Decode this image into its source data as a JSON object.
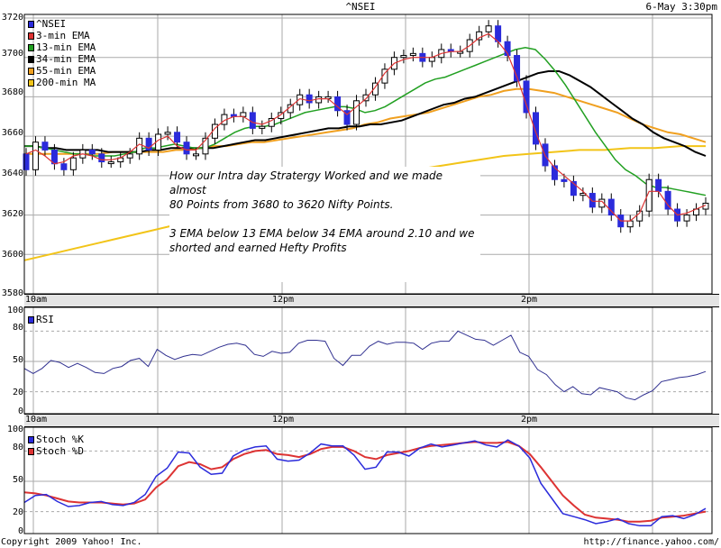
{
  "header": {
    "title": "^NSEI",
    "datetime": "6-May 3:30pm"
  },
  "main_panel": {
    "y_ticks": [
      "3720",
      "3700",
      "3680",
      "3660",
      "3640",
      "3620",
      "3600",
      "3580"
    ],
    "legend": [
      {
        "label": "^NSEI",
        "color": "#2b2bdb"
      },
      {
        "label": "3-min EMA",
        "color": "#dd3333"
      },
      {
        "label": "13-min EMA",
        "color": "#22a022"
      },
      {
        "label": "34-min EMA",
        "color": "#000000"
      },
      {
        "label": "55-min EMA",
        "color": "#f0a020"
      },
      {
        "label": "200-min MA",
        "color": "#f2c418"
      }
    ],
    "annotation": {
      "line1": "How our Intra day Stratergy Worked and we made almost",
      "line2": "80 Points from 3680 to 3620 Nifty Points.",
      "line3": "3 EMA below 13 EMA below 34 EMA around 2.10 and we",
      "line4": "shorted and earned Hefty Profits"
    }
  },
  "x_axis": {
    "labels": [
      "10am",
      "12pm",
      "2pm"
    ]
  },
  "rsi_panel": {
    "legend": "RSI",
    "y_ticks": [
      "100",
      "80",
      "50",
      "20",
      "0"
    ]
  },
  "stoch_panel": {
    "legend_k": "Stoch %K",
    "legend_d": "Stoch %D",
    "y_ticks": [
      "100",
      "80",
      "50",
      "20",
      "0"
    ]
  },
  "footer": {
    "copyright": "Copyright 2009 Yahoo! Inc.",
    "url": "http://finance.yahoo.com/"
  },
  "chart_data": [
    {
      "type": "candlestick",
      "title": "^NSEI",
      "subtitle": "6-May 3:30pm",
      "xlabel": "",
      "ylabel": "",
      "x_tick_labels": [
        "10am",
        "12pm",
        "2pm"
      ],
      "ylim": [
        3580,
        3720
      ],
      "grid": true,
      "legend_position": "top-left",
      "series": [
        {
          "name": "^NSEI",
          "note": "5-min candles (approx closes)",
          "values": [
            3643,
            3657,
            3653,
            3646,
            3643,
            3649,
            3653,
            3651,
            3647,
            3647,
            3649,
            3651,
            3659,
            3653,
            3661,
            3662,
            3657,
            3651,
            3651,
            3659,
            3666,
            3671,
            3670,
            3672,
            3664,
            3665,
            3669,
            3672,
            3676,
            3681,
            3677,
            3680,
            3680,
            3673,
            3666,
            3678,
            3681,
            3687,
            3694,
            3700,
            3701,
            3702,
            3698,
            3700,
            3704,
            3703,
            3703,
            3709,
            3713,
            3716,
            3708,
            3701,
            3688,
            3672,
            3656,
            3645,
            3638,
            3637,
            3630,
            3631,
            3624,
            3628,
            3620,
            3614,
            3617,
            3622,
            3638,
            3632,
            3623,
            3617,
            3620,
            3623,
            3626
          ]
        },
        {
          "name": "3-min EMA",
          "values": [
            3651,
            3653,
            3650,
            3646,
            3647,
            3650,
            3651,
            3650,
            3648,
            3648,
            3649,
            3652,
            3656,
            3654,
            3658,
            3660,
            3655,
            3653,
            3653,
            3658,
            3664,
            3668,
            3670,
            3670,
            3667,
            3666,
            3668,
            3671,
            3675,
            3679,
            3678,
            3679,
            3679,
            3675,
            3671,
            3675,
            3679,
            3685,
            3692,
            3697,
            3699,
            3700,
            3700,
            3700,
            3702,
            3703,
            3703,
            3706,
            3710,
            3712,
            3708,
            3702,
            3690,
            3676,
            3662,
            3650,
            3644,
            3640,
            3636,
            3632,
            3627,
            3627,
            3622,
            3617,
            3617,
            3621,
            3632,
            3632,
            3625,
            3620,
            3621,
            3623,
            3625
          ]
        },
        {
          "name": "13-min EMA",
          "values": [
            3655,
            3655,
            3654,
            3653,
            3652,
            3651,
            3651,
            3650,
            3650,
            3650,
            3651,
            3652,
            3654,
            3654,
            3655,
            3656,
            3655,
            3654,
            3654,
            3656,
            3659,
            3662,
            3664,
            3665,
            3665,
            3666,
            3668,
            3670,
            3672,
            3673,
            3674,
            3675,
            3675,
            3674,
            3672,
            3673,
            3675,
            3678,
            3681,
            3684,
            3687,
            3689,
            3690,
            3692,
            3694,
            3696,
            3698,
            3700,
            3702,
            3704,
            3705,
            3704,
            3699,
            3693,
            3686,
            3678,
            3670,
            3662,
            3655,
            3648,
            3643,
            3640,
            3636,
            3634,
            3634,
            3633,
            3632,
            3631,
            3630
          ]
        },
        {
          "name": "34-min EMA",
          "values": [
            3655,
            3655,
            3654,
            3654,
            3653,
            3653,
            3653,
            3653,
            3652,
            3652,
            3652,
            3652,
            3653,
            3653,
            3654,
            3654,
            3654,
            3654,
            3654,
            3655,
            3656,
            3657,
            3658,
            3658,
            3659,
            3660,
            3661,
            3662,
            3663,
            3664,
            3664,
            3665,
            3665,
            3666,
            3666,
            3667,
            3668,
            3670,
            3672,
            3674,
            3676,
            3677,
            3679,
            3680,
            3682,
            3684,
            3686,
            3688,
            3690,
            3692,
            3693,
            3693,
            3691,
            3688,
            3685,
            3681,
            3677,
            3673,
            3669,
            3666,
            3662,
            3659,
            3657,
            3655,
            3652,
            3650
          ]
        },
        {
          "name": "55-min EMA",
          "values": [
            3651,
            3651,
            3651,
            3651,
            3651,
            3651,
            3651,
            3652,
            3652,
            3652,
            3652,
            3652,
            3653,
            3653,
            3654,
            3655,
            3655,
            3656,
            3657,
            3657,
            3658,
            3659,
            3660,
            3661,
            3662,
            3663,
            3664,
            3666,
            3667,
            3669,
            3670,
            3671,
            3672,
            3674,
            3676,
            3678,
            3680,
            3681,
            3683,
            3684,
            3684,
            3683,
            3682,
            3680,
            3678,
            3676,
            3674,
            3672,
            3669,
            3666,
            3664,
            3662,
            3661,
            3659,
            3657
          ]
        },
        {
          "name": "200-min MA",
          "values": [
            3597,
            3600,
            3603,
            3606,
            3609,
            3612,
            3615,
            3618,
            3621,
            3624,
            3627,
            3630,
            3633,
            3636,
            3639,
            3642,
            3644,
            3646,
            3648,
            3650,
            3651,
            3652,
            3653,
            3653,
            3654,
            3654,
            3655,
            3655
          ]
        }
      ]
    },
    {
      "type": "line",
      "title": "RSI",
      "ylim": [
        0,
        100
      ],
      "y_ticks": [
        0,
        20,
        50,
        80,
        100
      ],
      "x_tick_labels": [
        "10am",
        "12pm",
        "2pm"
      ],
      "series": [
        {
          "name": "RSI",
          "values": [
            43,
            38,
            43,
            51,
            49,
            44,
            48,
            44,
            39,
            38,
            43,
            45,
            51,
            53,
            45,
            62,
            56,
            52,
            55,
            57,
            56,
            60,
            64,
            67,
            68,
            66,
            57,
            55,
            60,
            58,
            59,
            68,
            71,
            71,
            70,
            53,
            46,
            56,
            56,
            65,
            70,
            67,
            69,
            69,
            68,
            62,
            68,
            70,
            70,
            80,
            76,
            72,
            71,
            66,
            71,
            76,
            59,
            55,
            42,
            37,
            27,
            20,
            25,
            18,
            17,
            24,
            22,
            20,
            14,
            12,
            17,
            21,
            30,
            32,
            34,
            35,
            37,
            40
          ]
        }
      ]
    },
    {
      "type": "line",
      "title": "Stochastic",
      "ylim": [
        0,
        100
      ],
      "y_ticks": [
        0,
        20,
        50,
        80,
        100
      ],
      "x_tick_labels": [
        "10am",
        "12pm",
        "2pm"
      ],
      "series": [
        {
          "name": "Stoch %K",
          "values": [
            29,
            36,
            37,
            30,
            25,
            26,
            29,
            30,
            27,
            26,
            29,
            37,
            55,
            63,
            79,
            78,
            64,
            57,
            58,
            75,
            81,
            84,
            85,
            72,
            70,
            71,
            78,
            87,
            85,
            85,
            76,
            62,
            64,
            79,
            79,
            75,
            83,
            87,
            84,
            86,
            88,
            90,
            86,
            84,
            91,
            85,
            73,
            48,
            33,
            18,
            15,
            12,
            8,
            10,
            13,
            8,
            6,
            6,
            15,
            16,
            13,
            17,
            23
          ]
        },
        {
          "name": "Stoch %D",
          "values": [
            39,
            38,
            36,
            33,
            30,
            29,
            29,
            29,
            28,
            27,
            28,
            32,
            44,
            52,
            65,
            69,
            67,
            62,
            64,
            72,
            77,
            80,
            81,
            77,
            76,
            74,
            77,
            82,
            84,
            84,
            80,
            74,
            72,
            76,
            78,
            80,
            83,
            85,
            86,
            87,
            88,
            89,
            88,
            88,
            89,
            85,
            77,
            64,
            50,
            36,
            26,
            17,
            14,
            13,
            12,
            10,
            10,
            11,
            14,
            15,
            16,
            18,
            20
          ]
        }
      ]
    }
  ]
}
